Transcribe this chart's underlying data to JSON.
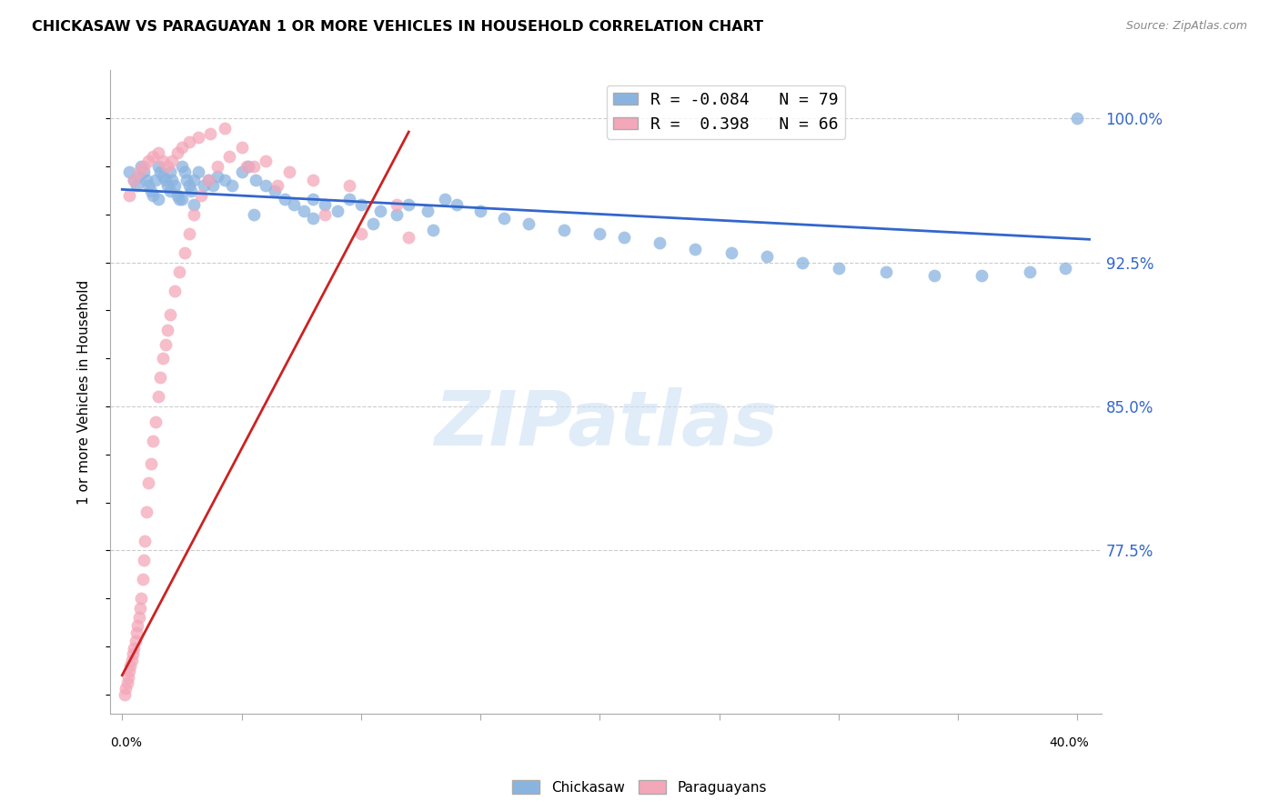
{
  "title": "CHICKASAW VS PARAGUAYAN 1 OR MORE VEHICLES IN HOUSEHOLD CORRELATION CHART",
  "source": "Source: ZipAtlas.com",
  "ylabel": "1 or more Vehicles in Household",
  "y_ticks": [
    0.7,
    0.725,
    0.75,
    0.775,
    0.8,
    0.825,
    0.85,
    0.875,
    0.9,
    0.925,
    0.95,
    0.975,
    1.0
  ],
  "y_tick_labels": [
    "",
    "",
    "",
    "77.5%",
    "",
    "",
    "85.0%",
    "",
    "",
    "92.5%",
    "",
    "",
    "100.0%"
  ],
  "xlim": [
    -0.5,
    41.0
  ],
  "ylim": [
    0.69,
    1.025
  ],
  "blue_color": "#8ab4e0",
  "pink_color": "#f4a7b9",
  "blue_line_color": "#3366cc",
  "pink_line_color": "#cc2222",
  "grid_color": "#cccccc",
  "legend_R1": "R = -0.084",
  "legend_N1": "N = 79",
  "legend_R2": "R =  0.398",
  "legend_N2": "N = 66",
  "blue_scatter_x": [
    0.3,
    0.5,
    0.6,
    0.7,
    0.8,
    0.9,
    1.0,
    1.1,
    1.2,
    1.3,
    1.4,
    1.5,
    1.6,
    1.7,
    1.8,
    1.9,
    2.0,
    2.1,
    2.2,
    2.3,
    2.4,
    2.5,
    2.6,
    2.7,
    2.8,
    2.9,
    3.0,
    3.2,
    3.4,
    3.6,
    3.8,
    4.0,
    4.3,
    4.6,
    5.0,
    5.3,
    5.6,
    6.0,
    6.4,
    6.8,
    7.2,
    7.6,
    8.0,
    8.5,
    9.0,
    9.5,
    10.0,
    10.8,
    11.5,
    12.0,
    12.8,
    13.5,
    14.0,
    15.0,
    16.0,
    17.0,
    18.5,
    20.0,
    21.0,
    22.5,
    24.0,
    25.5,
    27.0,
    28.5,
    30.0,
    32.0,
    34.0,
    36.0,
    38.0,
    39.5,
    1.5,
    2.0,
    2.5,
    3.0,
    5.5,
    8.0,
    10.5,
    13.0,
    40.0
  ],
  "blue_scatter_y": [
    0.972,
    0.968,
    0.965,
    0.97,
    0.975,
    0.972,
    0.968,
    0.965,
    0.962,
    0.96,
    0.968,
    0.975,
    0.972,
    0.97,
    0.968,
    0.965,
    0.972,
    0.968,
    0.965,
    0.96,
    0.958,
    0.975,
    0.972,
    0.968,
    0.965,
    0.962,
    0.968,
    0.972,
    0.965,
    0.968,
    0.965,
    0.97,
    0.968,
    0.965,
    0.972,
    0.975,
    0.968,
    0.965,
    0.962,
    0.958,
    0.955,
    0.952,
    0.958,
    0.955,
    0.952,
    0.958,
    0.955,
    0.952,
    0.95,
    0.955,
    0.952,
    0.958,
    0.955,
    0.952,
    0.948,
    0.945,
    0.942,
    0.94,
    0.938,
    0.935,
    0.932,
    0.93,
    0.928,
    0.925,
    0.922,
    0.92,
    0.918,
    0.918,
    0.92,
    0.922,
    0.958,
    0.962,
    0.958,
    0.955,
    0.95,
    0.948,
    0.945,
    0.942,
    1.0
  ],
  "pink_scatter_x": [
    0.1,
    0.15,
    0.2,
    0.25,
    0.3,
    0.35,
    0.4,
    0.45,
    0.5,
    0.55,
    0.6,
    0.65,
    0.7,
    0.75,
    0.8,
    0.85,
    0.9,
    0.95,
    1.0,
    1.1,
    1.2,
    1.3,
    1.4,
    1.5,
    1.6,
    1.7,
    1.8,
    1.9,
    2.0,
    2.2,
    2.4,
    2.6,
    2.8,
    3.0,
    3.3,
    3.6,
    4.0,
    4.5,
    5.0,
    5.5,
    6.0,
    7.0,
    8.0,
    9.5,
    11.5,
    0.3,
    0.5,
    0.7,
    0.9,
    1.1,
    1.3,
    1.5,
    1.7,
    1.9,
    2.1,
    2.3,
    2.5,
    2.8,
    3.2,
    3.7,
    4.3,
    5.2,
    6.5,
    8.5,
    10.0,
    12.0
  ],
  "pink_scatter_y": [
    0.7,
    0.703,
    0.706,
    0.709,
    0.712,
    0.715,
    0.718,
    0.721,
    0.724,
    0.728,
    0.732,
    0.736,
    0.74,
    0.745,
    0.75,
    0.76,
    0.77,
    0.78,
    0.795,
    0.81,
    0.82,
    0.832,
    0.842,
    0.855,
    0.865,
    0.875,
    0.882,
    0.89,
    0.898,
    0.91,
    0.92,
    0.93,
    0.94,
    0.95,
    0.96,
    0.968,
    0.975,
    0.98,
    0.985,
    0.975,
    0.978,
    0.972,
    0.968,
    0.965,
    0.955,
    0.96,
    0.968,
    0.972,
    0.975,
    0.978,
    0.98,
    0.982,
    0.978,
    0.975,
    0.978,
    0.982,
    0.985,
    0.988,
    0.99,
    0.992,
    0.995,
    0.975,
    0.965,
    0.95,
    0.94,
    0.938
  ],
  "blue_trend_x": [
    0.0,
    40.5
  ],
  "blue_trend_y": [
    0.963,
    0.937
  ],
  "pink_trend_x": [
    0.0,
    12.0
  ],
  "pink_trend_y": [
    0.71,
    0.993
  ]
}
